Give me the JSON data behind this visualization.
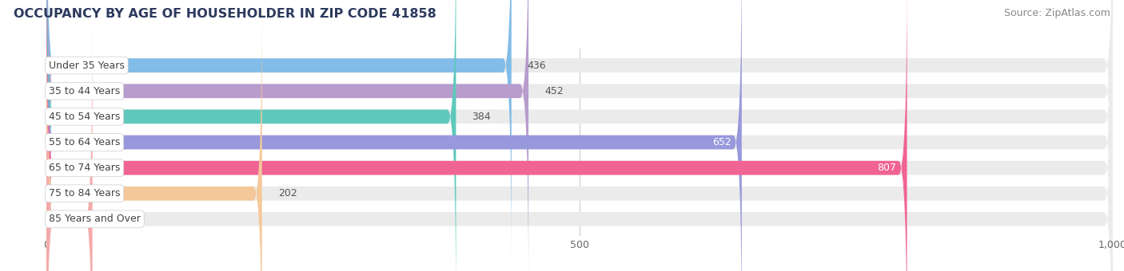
{
  "title": "OCCUPANCY BY AGE OF HOUSEHOLDER IN ZIP CODE 41858",
  "source": "Source: ZipAtlas.com",
  "categories": [
    "Under 35 Years",
    "35 to 44 Years",
    "45 to 54 Years",
    "55 to 64 Years",
    "65 to 74 Years",
    "75 to 84 Years",
    "85 Years and Over"
  ],
  "values": [
    436,
    452,
    384,
    652,
    807,
    202,
    43
  ],
  "bar_colors": [
    "#82bce8",
    "#b89ccc",
    "#5ec8bc",
    "#9898dc",
    "#f06494",
    "#f5c89a",
    "#f5aaaa"
  ],
  "xlim": [
    -30,
    1000
  ],
  "xmin": 0,
  "xmax": 1000,
  "xticks": [
    0,
    500,
    1000
  ],
  "xtick_labels": [
    "0",
    "500",
    "1,000"
  ],
  "bar_height": 0.55,
  "bg_color": "#ffffff",
  "bar_bg_color": "#ebebeb",
  "title_fontsize": 11.5,
  "source_fontsize": 9,
  "tick_fontsize": 9,
  "label_fontsize": 9,
  "category_fontsize": 9,
  "value_threshold_inside": 500
}
